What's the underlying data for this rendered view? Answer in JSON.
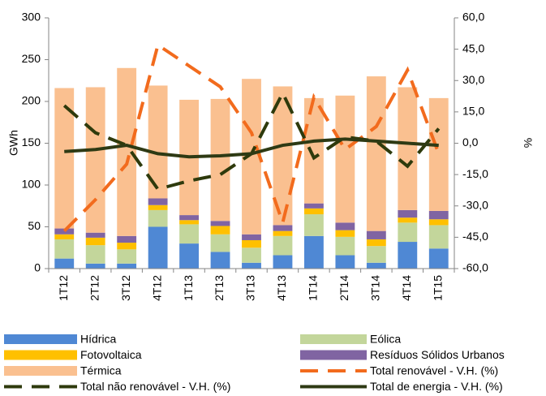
{
  "chart_data": {
    "type": "bar",
    "stacked": true,
    "y_label": "GWh",
    "y2_label": "%",
    "categories": [
      "1T12",
      "2T12",
      "3T12",
      "4T12",
      "1T13",
      "2T13",
      "3T13",
      "4T13",
      "1T14",
      "2T14",
      "3T14",
      "4T14",
      "1T15"
    ],
    "ylim": [
      0,
      300
    ],
    "yticks": [
      0,
      50,
      100,
      150,
      200,
      250,
      300
    ],
    "y2lim": [
      -60,
      60
    ],
    "y2ticks": [
      {
        "value": -60,
        "label": "-60,0"
      },
      {
        "value": -45,
        "label": "-45,0"
      },
      {
        "value": -30,
        "label": "-30,0"
      },
      {
        "value": -15,
        "label": "-15,0"
      },
      {
        "value": 0,
        "label": "0,0"
      },
      {
        "value": 15,
        "label": "15,0"
      },
      {
        "value": 30,
        "label": "30,0"
      },
      {
        "value": 45,
        "label": "45,0"
      },
      {
        "value": 60,
        "label": "60,0"
      }
    ],
    "grid": false,
    "series": [
      {
        "name": "Hídrica",
        "type": "bar",
        "color": "#4f88d4",
        "values": [
          12,
          6,
          6,
          50,
          30,
          20,
          7,
          16,
          39,
          16,
          7,
          32,
          24
        ]
      },
      {
        "name": "Eólica",
        "type": "bar",
        "color": "#c3d69b",
        "values": [
          23,
          22,
          17,
          20,
          23,
          21,
          18,
          23,
          26,
          22,
          20,
          23,
          28
        ]
      },
      {
        "name": "Fotovoltaica",
        "type": "bar",
        "color": "#ffc000",
        "values": [
          6,
          9,
          8,
          6,
          5,
          10,
          9,
          6,
          7,
          8,
          8,
          6,
          7
        ]
      },
      {
        "name": "Resíduos Sólidos Urbanos",
        "type": "bar",
        "color": "#8064a2",
        "values": [
          7,
          6,
          8,
          8,
          6,
          6,
          7,
          7,
          6,
          9,
          10,
          9,
          10
        ]
      },
      {
        "name": "Térmica",
        "type": "bar",
        "color": "#fac090",
        "values": [
          168,
          174,
          201,
          135,
          138,
          146,
          186,
          166,
          126,
          152,
          185,
          147,
          135
        ]
      },
      {
        "name": "Total renovável - V.H. (%)",
        "type": "line",
        "axis": "y2",
        "style": "dashed",
        "color": "#f26b1d",
        "values": [
          -42,
          -27,
          -10,
          47,
          37,
          27,
          5,
          -38,
          22,
          -3,
          8,
          35,
          -5
        ]
      },
      {
        "name": "Total não renovável - V.H. (%)",
        "type": "line",
        "axis": "y2",
        "style": "dashed",
        "color": "#2e3a0c",
        "values": [
          18,
          5,
          -1,
          -22,
          -18,
          -15,
          -5,
          24,
          -7,
          3,
          1,
          -11,
          7
        ]
      },
      {
        "name": "Total de energia - V.H. (%)",
        "type": "line",
        "axis": "y2",
        "style": "solid",
        "color": "#2e3a14",
        "values": [
          -4,
          -3,
          -1,
          -5,
          -6.5,
          -6,
          -5,
          -1,
          1,
          2,
          1,
          0,
          -1
        ]
      }
    ]
  }
}
